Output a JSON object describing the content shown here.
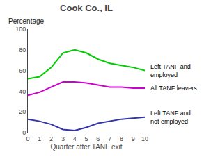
{
  "chart_data": {
    "type": "line",
    "title": "Cook Co., IL",
    "xlabel": "Quarter after TANF exit",
    "ylabel": "Percentage",
    "x": [
      0,
      1,
      2,
      3,
      4,
      5,
      6,
      7,
      8,
      9,
      10
    ],
    "series": [
      {
        "name": "Left TANF and\nemployed",
        "color": "#00cc00",
        "values": [
          52,
          54,
          63,
          77,
          80,
          77,
          71,
          67,
          65,
          63,
          60
        ]
      },
      {
        "name": "All TANF leavers",
        "color": "#cc00cc",
        "values": [
          36,
          39,
          44,
          49,
          49,
          48,
          46,
          44,
          44,
          43,
          43
        ]
      },
      {
        "name": "Left TANF and\nnot employed",
        "color": "#3333aa",
        "values": [
          13,
          11,
          8,
          3,
          2,
          5,
          9,
          11,
          13,
          14,
          15
        ]
      }
    ],
    "xlim": [
      0,
      10
    ],
    "ylim": [
      0,
      100
    ],
    "xticks": [
      0,
      1,
      2,
      3,
      4,
      5,
      6,
      7,
      8,
      9,
      10
    ],
    "yticks": [
      0,
      20,
      40,
      60,
      80,
      100
    ],
    "grid": false
  }
}
